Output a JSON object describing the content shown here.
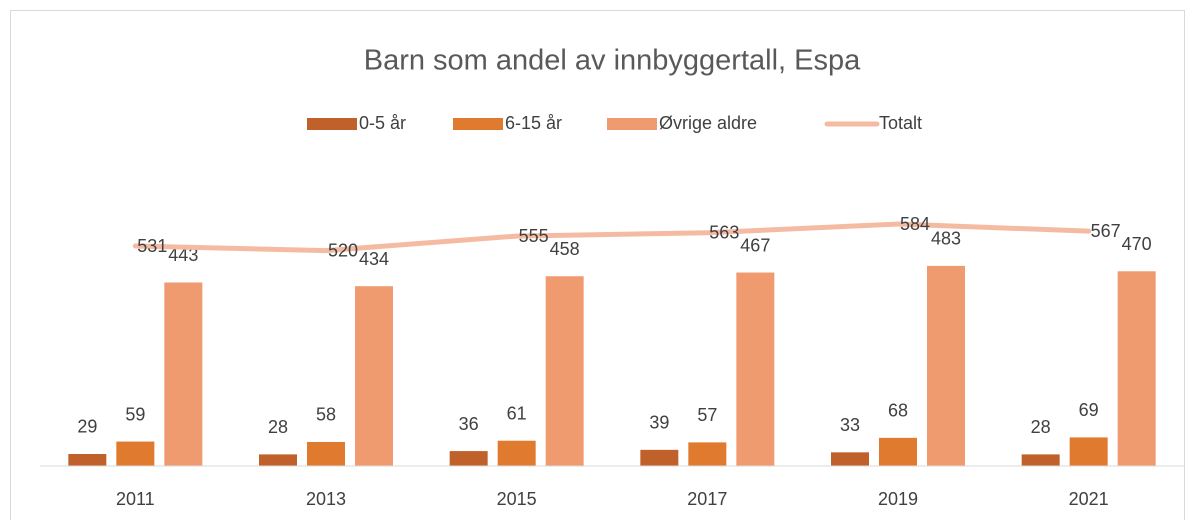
{
  "chart_data": {
    "type": "bar+line",
    "title": "Barn som andel av innbyggertall, Espa",
    "categories": [
      "2011",
      "2013",
      "2015",
      "2017",
      "2019",
      "2021"
    ],
    "series": [
      {
        "name": "0-5 år",
        "type": "bar",
        "color": "#c0612b",
        "values": [
          29,
          28,
          36,
          39,
          33,
          28
        ]
      },
      {
        "name": "6-15 år",
        "type": "bar",
        "color": "#e07a2e",
        "values": [
          59,
          58,
          61,
          57,
          68,
          69
        ]
      },
      {
        "name": "Øvrige aldre",
        "type": "bar",
        "color": "#f09a70",
        "values": [
          443,
          434,
          458,
          467,
          483,
          470
        ]
      },
      {
        "name": "Totalt",
        "type": "line",
        "color": "#f5bba2",
        "values": [
          531,
          520,
          555,
          563,
          584,
          567
        ]
      }
    ],
    "ylim": [
      0,
      700
    ]
  }
}
